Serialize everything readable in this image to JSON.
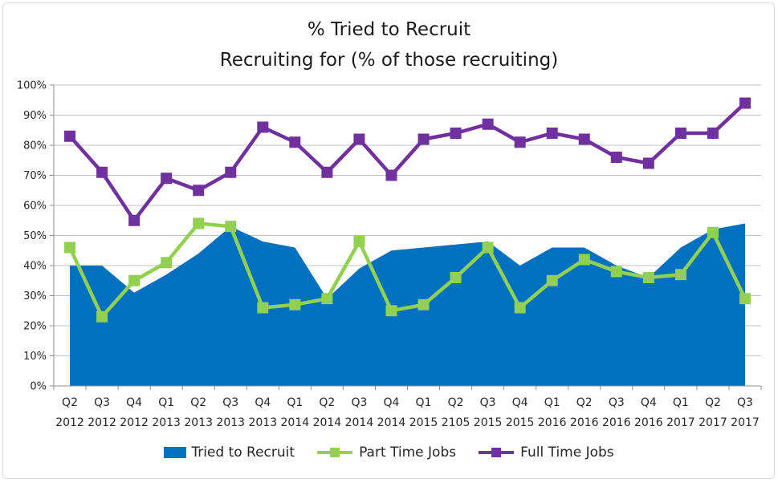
{
  "chart_data": {
    "type": "line",
    "title": "% Tried to Recruit",
    "subtitle": "Recruiting for (% of those recruiting)",
    "ylim": [
      0,
      100
    ],
    "y_ticks": [
      "0%",
      "10%",
      "20%",
      "30%",
      "40%",
      "50%",
      "60%",
      "70%",
      "80%",
      "90%",
      "100%"
    ],
    "grid": true,
    "legend_position": "bottom",
    "categories": [
      [
        "Q2",
        "2012"
      ],
      [
        "Q3",
        "2012"
      ],
      [
        "Q4",
        "2012"
      ],
      [
        "Q1",
        "2013"
      ],
      [
        "Q2",
        "2013"
      ],
      [
        "Q3",
        "2013"
      ],
      [
        "Q4",
        "2013"
      ],
      [
        "Q1",
        "2014"
      ],
      [
        "Q2",
        "2014"
      ],
      [
        "Q3",
        "2014"
      ],
      [
        "Q4",
        "2014"
      ],
      [
        "Q1",
        "2015"
      ],
      [
        "Q2",
        "2105"
      ],
      [
        "Q3",
        "2015"
      ],
      [
        "Q4",
        "2015"
      ],
      [
        "Q1",
        "2016"
      ],
      [
        "Q2",
        "2016"
      ],
      [
        "Q3",
        "2016"
      ],
      [
        "Q4",
        "2016"
      ],
      [
        "Q1",
        "2017"
      ],
      [
        "Q2",
        "2017"
      ],
      [
        "Q3",
        "2017"
      ]
    ],
    "series": [
      {
        "name": "Tried to Recruit",
        "type": "area",
        "color": "#0070c0",
        "values": [
          40,
          40,
          31,
          37,
          44,
          53,
          48,
          46,
          29,
          39,
          45,
          46,
          47,
          48,
          40,
          46,
          46,
          40,
          36,
          46,
          52,
          54
        ]
      },
      {
        "name": "Part Time Jobs",
        "type": "line",
        "marker": "square",
        "color": "#92d050",
        "values": [
          46,
          23,
          35,
          41,
          54,
          53,
          26,
          27,
          29,
          48,
          25,
          27,
          36,
          46,
          26,
          35,
          42,
          38,
          36,
          37,
          51,
          29
        ]
      },
      {
        "name": "Full Time Jobs",
        "type": "line",
        "marker": "square",
        "color": "#7030a0",
        "values": [
          83,
          71,
          55,
          69,
          65,
          71,
          86,
          81,
          71,
          82,
          70,
          82,
          84,
          87,
          81,
          84,
          82,
          76,
          74,
          84,
          84,
          94
        ]
      }
    ]
  }
}
